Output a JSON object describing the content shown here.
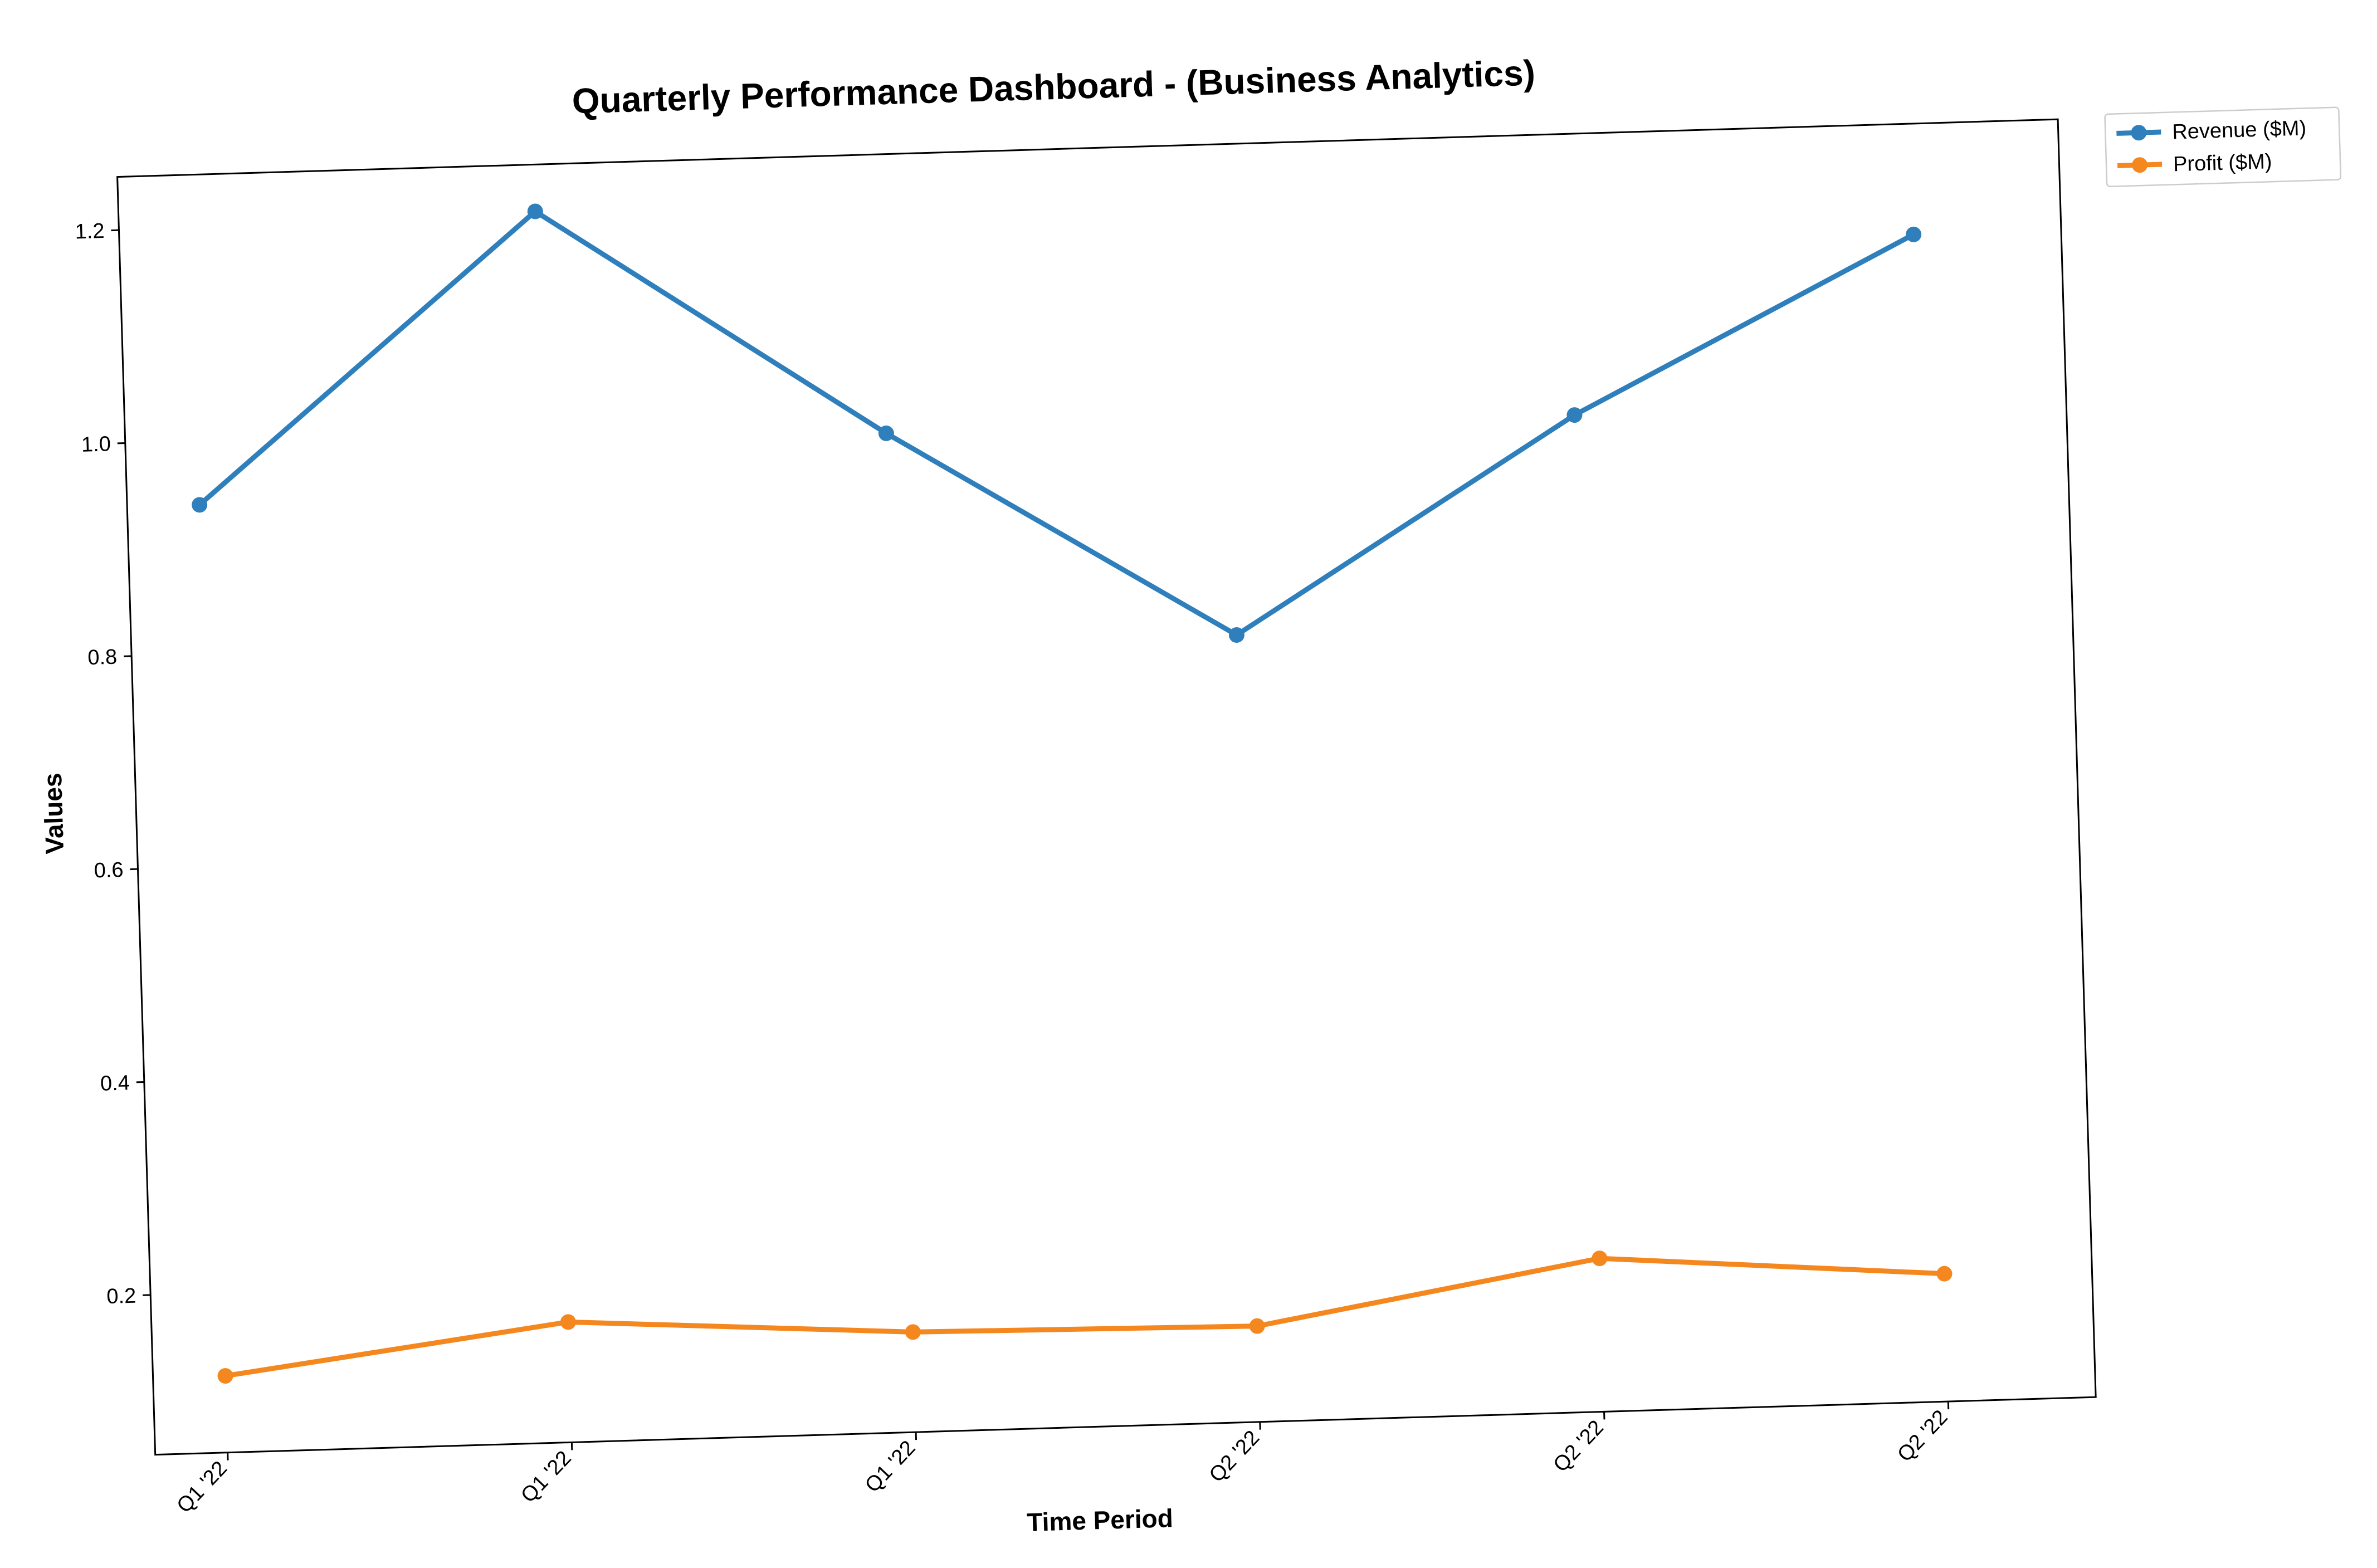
{
  "chart_data": {
    "type": "line",
    "title": "Quarterly Performance Dashboard - (Business Analytics)",
    "xlabel": "Time Period",
    "ylabel": "Values",
    "categories": [
      "Q1 '22",
      "Q1 '22",
      "Q1 '22",
      "Q2 '22",
      "Q2 '22",
      "Q2 '22"
    ],
    "yticks": [
      "0.2",
      "0.4",
      "0.6",
      "0.8",
      "1.0",
      "1.2"
    ],
    "ylim": [
      0.05,
      1.25
    ],
    "grid": false,
    "legend_position": "outside top-right",
    "series": [
      {
        "name": "Revenue ($M)",
        "color": "#2e7fbb",
        "values": [
          0.94,
          1.206,
          0.988,
          0.789,
          0.986,
          1.146
        ]
      },
      {
        "name": "Profit ($M)",
        "color": "#f5871f",
        "values": [
          0.122,
          0.163,
          0.144,
          0.14,
          0.194,
          0.17
        ]
      }
    ]
  }
}
